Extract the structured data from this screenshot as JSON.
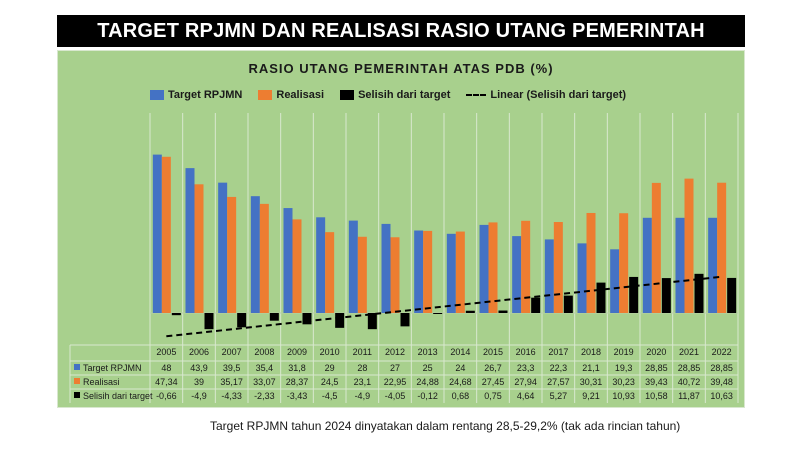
{
  "header": {
    "title": "TARGET RPJMN DAN REALISASI RASIO UTANG PEMERINTAH"
  },
  "colors": {
    "target": "#4472c4",
    "realisasi": "#ed7d31",
    "selisih": "#000000",
    "trend": "#000000",
    "panel_bg": "#a8d08d",
    "grid": "#d9e8cf"
  },
  "footnote": "Target RPJMN tahun 2024 dinyatakan dalam rentang 28,5-29,2% (tak ada rincian tahun)",
  "chart_data": {
    "type": "bar",
    "title": "RASIO UTANG PEMERINTAH ATAS PDB (%)",
    "categories": [
      "2005",
      "2006",
      "2007",
      "2008",
      "2009",
      "2010",
      "2011",
      "2012",
      "2013",
      "2014",
      "2015",
      "2016",
      "2017",
      "2018",
      "2019",
      "2020",
      "2021",
      "2022"
    ],
    "series": [
      {
        "name": "Target RPJMN",
        "values": [
          48,
          43.9,
          39.5,
          35.4,
          31.8,
          29,
          28,
          27,
          25,
          24,
          26.7,
          23.3,
          22.3,
          21.1,
          19.3,
          28.85,
          28.85,
          28.85
        ],
        "labels": [
          "48",
          "43,9",
          "39,5",
          "35,4",
          "31,8",
          "29",
          "28",
          "27",
          "25",
          "24",
          "26,7",
          "23,3",
          "22,3",
          "21,1",
          "19,3",
          "28,85",
          "28,85",
          "28,85"
        ]
      },
      {
        "name": "Realisasi",
        "values": [
          47.34,
          39,
          35.17,
          33.07,
          28.37,
          24.5,
          23.1,
          22.95,
          24.88,
          24.68,
          27.45,
          27.94,
          27.57,
          30.31,
          30.23,
          39.43,
          40.72,
          39.48
        ],
        "labels": [
          "47,34",
          "39",
          "35,17",
          "33,07",
          "28,37",
          "24,5",
          "23,1",
          "22,95",
          "24,88",
          "24,68",
          "27,45",
          "27,94",
          "27,57",
          "30,31",
          "30,23",
          "39,43",
          "40,72",
          "39,48"
        ]
      },
      {
        "name": "Selisih dari target",
        "values": [
          -0.66,
          -4.9,
          -4.33,
          -2.33,
          -3.43,
          -4.5,
          -4.9,
          -4.05,
          -0.12,
          0.68,
          0.75,
          4.64,
          5.27,
          9.21,
          10.93,
          10.58,
          11.87,
          10.63
        ],
        "labels": [
          "-0,66",
          "-4,9",
          "-4,33",
          "-2,33",
          "-3,43",
          "-4,5",
          "-4,9",
          "-4,05",
          "-0,12",
          "0,68",
          "0,75",
          "4,64",
          "5,27",
          "9,21",
          "10,93",
          "10,58",
          "11,87",
          "10,63"
        ]
      }
    ],
    "trendline": {
      "name": "Linear (Selisih dari target)",
      "of_series": "Selisih dari target",
      "style": "dashed"
    },
    "ylim": [
      -8,
      50
    ],
    "grid": true,
    "legend": "top",
    "data_table": true
  }
}
